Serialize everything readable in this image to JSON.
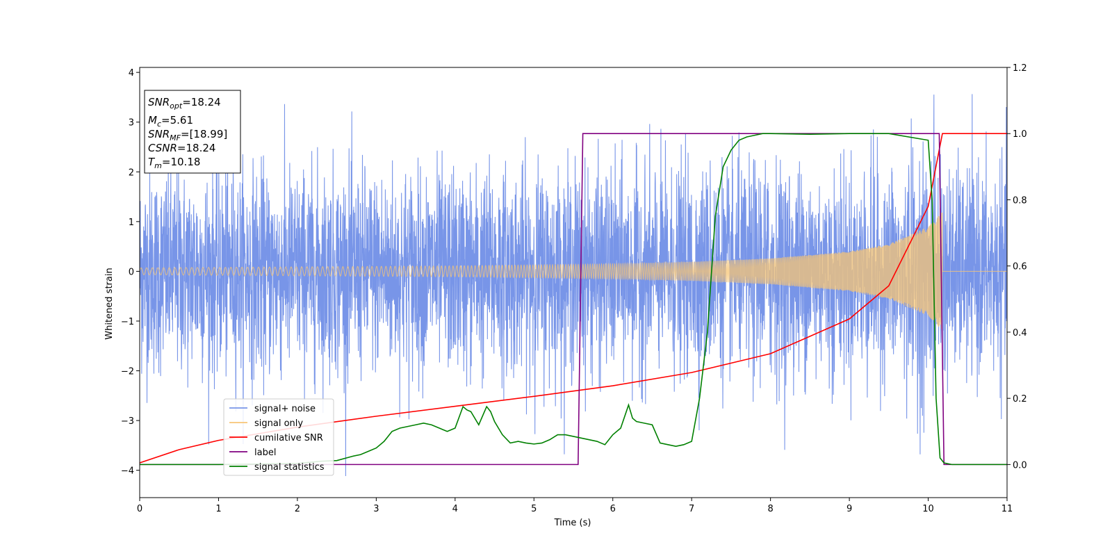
{
  "chart_data": {
    "type": "line",
    "xlabel": "Time (s)",
    "ylabel": "Whitened strain",
    "xlim": [
      0,
      11
    ],
    "ylim": [
      -4.55,
      4.1
    ],
    "ylim_right": [
      -0.1,
      1.2
    ],
    "x_ticks": [
      "0",
      "1",
      "2",
      "3",
      "4",
      "5",
      "6",
      "7",
      "8",
      "9",
      "10",
      "11"
    ],
    "y_ticks": [
      "−4",
      "−3",
      "−2",
      "−1",
      "0",
      "1",
      "2",
      "3",
      "4"
    ],
    "y_right_ticks": [
      "0.0",
      "0.2",
      "0.4",
      "0.6",
      "0.8",
      "1.0",
      "1.2"
    ],
    "grid": false,
    "legend_position": "lower-left",
    "annotation": {
      "snr_opt": {
        "main": "SNR",
        "sub": "opt",
        "value": "=18.24"
      },
      "mc": {
        "main": "M",
        "sub": "c",
        "value": "=5.61"
      },
      "snr_mf": {
        "main": "SNR",
        "sub": "MF",
        "value": "=[18.99]"
      },
      "csnr": {
        "main": "CSNR",
        "value": "=18.24"
      },
      "tm": {
        "main": "T",
        "sub": "m",
        "value": "=10.18"
      }
    },
    "series": [
      {
        "name": "signal+ noise",
        "color": "#7895e8",
        "axis": "left",
        "description_values": {
          "noise_sigma": 1.0,
          "t_start": 0,
          "t_end": 11
        }
      },
      {
        "name": "signal only",
        "color": "#f7c576",
        "axis": "left",
        "envelope": {
          "t": [
            0,
            2,
            4,
            6,
            7,
            8,
            9,
            9.5,
            10,
            10.18
          ],
          "amp": [
            0.07,
            0.09,
            0.11,
            0.15,
            0.19,
            0.26,
            0.4,
            0.55,
            0.9,
            1.2
          ]
        }
      },
      {
        "name": "cumilative SNR",
        "color": "#ff0000",
        "axis": "right",
        "x": [
          0,
          0.5,
          1,
          2,
          3,
          4,
          5,
          6,
          7,
          8,
          9,
          9.5,
          10,
          10.18,
          11
        ],
        "y": [
          0.005,
          0.045,
          0.073,
          0.113,
          0.146,
          0.176,
          0.206,
          0.238,
          0.278,
          0.335,
          0.44,
          0.54,
          0.78,
          1.0,
          1.0
        ]
      },
      {
        "name": "label",
        "color": "#800080",
        "axis": "right",
        "x": [
          0,
          5.56,
          5.62,
          10.14,
          10.2,
          11
        ],
        "y": [
          0,
          0,
          1,
          1,
          0,
          0
        ]
      },
      {
        "name": "signal statistics",
        "color": "#008000",
        "axis": "right",
        "x": [
          0,
          1,
          2,
          2.3,
          2.5,
          2.7,
          2.8,
          2.9,
          3.0,
          3.1,
          3.2,
          3.3,
          3.4,
          3.5,
          3.6,
          3.7,
          3.8,
          3.9,
          4.0,
          4.1,
          4.15,
          4.2,
          4.3,
          4.4,
          4.45,
          4.5,
          4.6,
          4.7,
          4.8,
          4.9,
          5.0,
          5.1,
          5.2,
          5.3,
          5.4,
          5.5,
          5.6,
          5.7,
          5.8,
          5.9,
          6.0,
          6.1,
          6.2,
          6.25,
          6.3,
          6.4,
          6.5,
          6.6,
          6.7,
          6.8,
          6.9,
          7.0,
          7.1,
          7.2,
          7.3,
          7.4,
          7.5,
          7.6,
          7.7,
          7.8,
          7.9,
          8.0,
          8.5,
          9.0,
          9.5,
          10.0,
          10.05,
          10.1,
          10.15,
          10.2,
          10.3,
          11
        ],
        "y": [
          0,
          0.0,
          0.003,
          0.01,
          0.012,
          0.025,
          0.03,
          0.04,
          0.05,
          0.07,
          0.1,
          0.11,
          0.115,
          0.12,
          0.125,
          0.12,
          0.11,
          0.1,
          0.11,
          0.175,
          0.165,
          0.16,
          0.12,
          0.175,
          0.16,
          0.13,
          0.09,
          0.065,
          0.07,
          0.065,
          0.062,
          0.065,
          0.075,
          0.09,
          0.09,
          0.085,
          0.08,
          0.075,
          0.07,
          0.06,
          0.09,
          0.11,
          0.18,
          0.14,
          0.13,
          0.125,
          0.12,
          0.065,
          0.06,
          0.055,
          0.06,
          0.07,
          0.2,
          0.4,
          0.75,
          0.9,
          0.95,
          0.98,
          0.99,
          0.995,
          1.0,
          1.0,
          0.998,
          1.0,
          1.0,
          0.98,
          0.8,
          0.2,
          0.02,
          0.005,
          0.0,
          0.0
        ]
      }
    ]
  }
}
